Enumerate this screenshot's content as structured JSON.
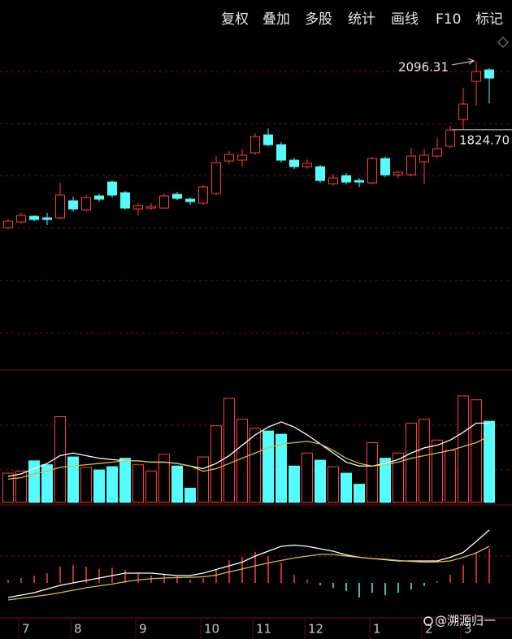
{
  "toolbar": [
    "复权",
    "叠加",
    "多股",
    "统计",
    "画线",
    "F10",
    "标记"
  ],
  "watermark": "@溯源归一",
  "chart_data": [
    {
      "type": "candlestick",
      "up_color": "#ff3c3c",
      "down_color": "#54fcfc",
      "ylim": [
        880,
        2208
      ],
      "grid": true,
      "open": [
        1440,
        1462.4,
        1484.8,
        1478.4,
        1478.4,
        1545.6,
        1510.4,
        1564.8,
        1619.2,
        1577.6,
        1513.6,
        1516.8,
        1516.8,
        1571.2,
        1552,
        1536,
        1574.4,
        1702.4,
        1705.6,
        1734.4,
        1804.8,
        1766.4,
        1705.6,
        1680,
        1680,
        1612.8,
        1644.8,
        1625.6,
        1616,
        1712,
        1648,
        1648,
        1699.2,
        1721.6,
        1760,
        1865.6,
        2016,
        2060.8
      ],
      "high": [
        1472,
        1497.6,
        1488,
        1497.6,
        1616,
        1561.6,
        1568,
        1574.4,
        1625.6,
        1584,
        1536,
        1536,
        1574.4,
        1580.8,
        1558.4,
        1606.4,
        1721.6,
        1740.8,
        1750.4,
        1811.2,
        1830.4,
        1776,
        1715.2,
        1708.8,
        1686.4,
        1651.2,
        1654.4,
        1635.2,
        1718.4,
        1718.4,
        1664,
        1753.6,
        1750.4,
        1792,
        1840,
        1990.4,
        2096.31,
        2067.2
      ],
      "low": [
        1433.6,
        1456,
        1465.6,
        1449.6,
        1472,
        1504,
        1504,
        1542.4,
        1558.4,
        1510.4,
        1488,
        1510.4,
        1516.8,
        1548.8,
        1529.6,
        1529.6,
        1568,
        1689.6,
        1680,
        1728,
        1760,
        1696,
        1670.4,
        1670.4,
        1616,
        1606.4,
        1609.6,
        1600,
        1609.6,
        1638.4,
        1635.2,
        1641.6,
        1612.8,
        1715.2,
        1753.6,
        1824.7,
        1920,
        1929.6
      ],
      "close": [
        1465.6,
        1488,
        1472,
        1472,
        1568,
        1513.6,
        1558.4,
        1552,
        1568,
        1516.8,
        1526.4,
        1523.2,
        1564.8,
        1555.2,
        1542.4,
        1600,
        1696,
        1728,
        1724.8,
        1798.4,
        1766.4,
        1705.6,
        1680,
        1692.8,
        1625.6,
        1635.2,
        1619.2,
        1619.2,
        1712,
        1648,
        1657.6,
        1721.6,
        1724.8,
        1750.4,
        1824,
        1926.4,
        2054.4,
        2028.8
      ],
      "annotations": [
        {
          "value": 2096.31,
          "label": "2096.31"
        },
        {
          "value": 1824.7,
          "label": "1824.70"
        }
      ]
    },
    {
      "type": "volume",
      "ylim": [
        0,
        102
      ],
      "values": [
        22.5,
        24,
        32,
        29,
        66,
        35,
        27,
        25,
        27.5,
        34,
        29,
        24,
        37,
        28,
        11,
        35,
        59,
        80,
        64,
        57,
        55,
        52.5,
        28,
        38,
        32.5,
        27.5,
        22.5,
        14,
        46,
        34,
        38,
        61,
        64,
        48,
        40,
        82,
        79,
        62.5
      ],
      "lines": [
        {
          "color": "#ffffff",
          "values": [
            20,
            22,
            26,
            30,
            36,
            38,
            36,
            34,
            33,
            32,
            32,
            31,
            31,
            30,
            28,
            26,
            30,
            36,
            44,
            52,
            58,
            62,
            58,
            52,
            45,
            38,
            31,
            28,
            28,
            30,
            33,
            38,
            42,
            44,
            48,
            54,
            61,
            61
          ]
        },
        {
          "color": "#d8b84a",
          "values": [
            18,
            19,
            22,
            24,
            27,
            28,
            29,
            30,
            31,
            32,
            32,
            31,
            31,
            30,
            28,
            24,
            26,
            30,
            34,
            38,
            42,
            45,
            46,
            47,
            45,
            40,
            34,
            30,
            28,
            29,
            31,
            34,
            36,
            38,
            40,
            43,
            46,
            51
          ]
        }
      ]
    },
    {
      "type": "macd",
      "ylim": [
        -13,
        31
      ],
      "values": [
        1.3,
        2,
        3,
        4,
        6.7,
        7.3,
        6.7,
        5.7,
        6.3,
        5.3,
        4,
        3,
        3.3,
        2.7,
        1.3,
        2,
        5.3,
        9.3,
        10.7,
        12.7,
        11,
        8.3,
        3.3,
        1.3,
        -1,
        -2,
        -3.3,
        -6,
        -4,
        -5,
        -4,
        -2.7,
        -1.3,
        0.7,
        3.3,
        7.3,
        12.7,
        14
      ],
      "lines": [
        {
          "color": "#ffffff",
          "values": [
            -6,
            -5,
            -4,
            -2.5,
            -1,
            0,
            1,
            2,
            3,
            4,
            4,
            4,
            3.5,
            3,
            3,
            4,
            5.5,
            7,
            8.5,
            11,
            13,
            15,
            15.5,
            15,
            14,
            13,
            11.5,
            10.5,
            10,
            9.5,
            9,
            9,
            9,
            9,
            10.5,
            12.5,
            17,
            21.7
          ]
        },
        {
          "color": "#d8b84a",
          "values": [
            -7,
            -6.3,
            -5.6,
            -4.9,
            -4,
            -3,
            -2,
            -1.2,
            -0.5,
            0.5,
            1.2,
            1.7,
            2,
            2.2,
            2.3,
            2.5,
            3.2,
            4.5,
            5.7,
            7,
            8.2,
            9.2,
            10.2,
            11,
            11.7,
            11.7,
            11,
            10.5,
            10,
            9.7,
            9.2,
            8.8,
            8.5,
            8.6,
            9,
            10.5,
            12.3,
            15
          ]
        }
      ],
      "categories": [
        null,
        "7",
        null,
        null,
        null,
        "8",
        null,
        null,
        null,
        null,
        "9",
        null,
        null,
        null,
        null,
        "10",
        null,
        null,
        null,
        "11",
        null,
        null,
        null,
        "12",
        null,
        null,
        null,
        null,
        "1",
        null,
        null,
        null,
        "2",
        null,
        null,
        "3",
        null,
        null
      ]
    }
  ]
}
